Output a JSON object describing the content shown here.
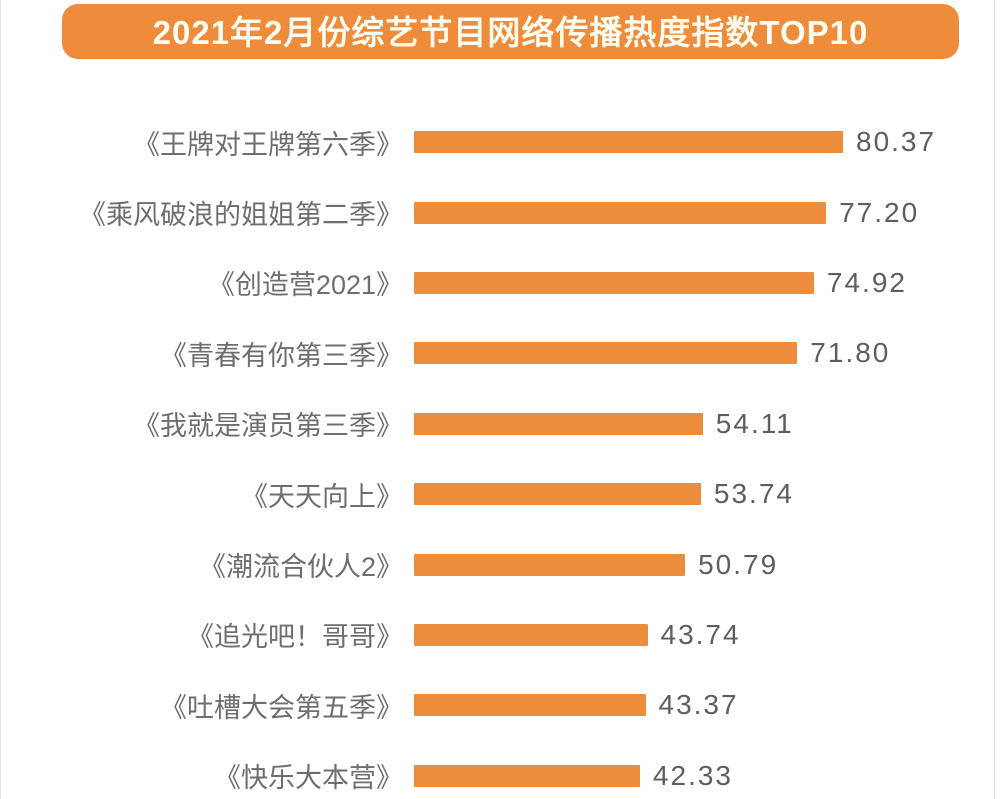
{
  "page": {
    "title": "2021年2月份综艺节目网络传播热度指数TOP10"
  },
  "colors": {
    "banner_bg": "#EE8C3B",
    "banner_text": "#FFFDF2",
    "bar_fill": "#ED8D3C",
    "category_text": "#6E6E6E",
    "value_text": "#5E5E5E"
  },
  "chart_data": {
    "type": "bar",
    "orientation": "horizontal",
    "title": "2021年2月份综艺节目网络传播热度指数TOP10",
    "categories": [
      "《王牌对王牌第六季》",
      "《乘风破浪的姐姐第二季》",
      "《创造营2021》",
      "《青春有你第三季》",
      "《我就是演员第三季》",
      "《天天向上》",
      "《潮流合伙人2》",
      "《追光吧！哥哥》",
      "《吐槽大会第五季》",
      "《快乐大本营》"
    ],
    "values": [
      80.37,
      77.2,
      74.92,
      71.8,
      54.11,
      53.74,
      50.79,
      43.74,
      43.37,
      42.33
    ],
    "value_labels": [
      "80.37",
      "77.20",
      "74.92",
      "71.80",
      "54.11",
      "53.74",
      "50.79",
      "43.74",
      "43.37",
      "42.33"
    ],
    "xlabel": "",
    "ylabel": "",
    "xlim": [
      0,
      80.37
    ],
    "grid": false,
    "legend": false,
    "data_labels_position": "end-of-bar"
  }
}
